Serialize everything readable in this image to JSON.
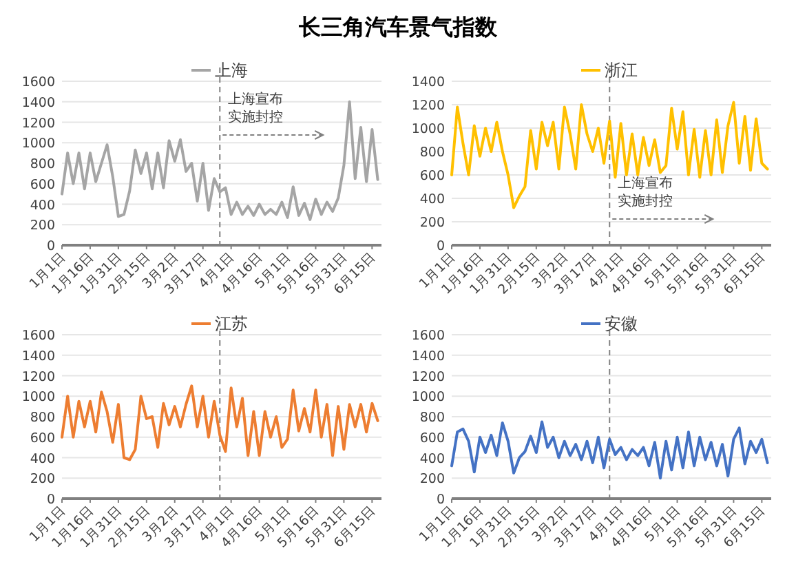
{
  "chart_data": [
    {
      "type": "line",
      "title": "长三角汽车景气指数",
      "legend": "top",
      "grid": "y",
      "xlim": [
        "--01-01",
        "--06-20"
      ],
      "ylim": [
        0,
        1600
      ],
      "yticks": [
        0,
        200,
        400,
        600,
        800,
        1000,
        1200,
        1400,
        1600
      ],
      "xticks": [
        {
          "value": "--01-01",
          "label": "1月1日"
        },
        {
          "value": "--01-16",
          "label": "1月16日"
        },
        {
          "value": "--01-31",
          "label": "1月31日"
        },
        {
          "value": "--02-15",
          "label": "2月15日"
        },
        {
          "value": "--03-02",
          "label": "3月2日"
        },
        {
          "value": "--03-17",
          "label": "3月17日"
        },
        {
          "value": "--04-01",
          "label": "4月1日"
        },
        {
          "value": "--04-16",
          "label": "4月16日"
        },
        {
          "value": "--05-01",
          "label": "5月1日"
        },
        {
          "value": "--05-16",
          "label": "5月16日"
        },
        {
          "value": "--05-31",
          "label": "5月31日"
        },
        {
          "value": "--06-15",
          "label": "6月15日"
        }
      ],
      "ref_lines": [
        {
          "axis": "x",
          "value": "--03-26",
          "label": "上海宣布实施封控",
          "color": "#808080",
          "line_style": "dashed"
        }
      ],
      "x": [
        "--01-01",
        "--01-04",
        "--01-07",
        "--01-10",
        "--01-13",
        "--01-16",
        "--01-19",
        "--01-22",
        "--01-25",
        "--01-28",
        "--01-31",
        "--02-03",
        "--02-06",
        "--02-09",
        "--02-12",
        "--02-15",
        "--02-18",
        "--02-21",
        "--02-24",
        "--02-27",
        "--03-02",
        "--03-05",
        "--03-08",
        "--03-11",
        "--03-14",
        "--03-17",
        "--03-20",
        "--03-23",
        "--03-26",
        "--03-29",
        "--04-01",
        "--04-04",
        "--04-07",
        "--04-10",
        "--04-13",
        "--04-16",
        "--04-19",
        "--04-22",
        "--04-25",
        "--04-28",
        "--05-01",
        "--05-04",
        "--05-07",
        "--05-10",
        "--05-13",
        "--05-16",
        "--05-19",
        "--05-22",
        "--05-25",
        "--05-28",
        "--05-31",
        "--06-03",
        "--06-06",
        "--06-09",
        "--06-12",
        "--06-15",
        "--06-18"
      ],
      "series": [
        {
          "name": "上海",
          "color": "#a5a5a5",
          "values": [
            500,
            900,
            600,
            900,
            550,
            900,
            620,
            800,
            980,
            670,
            280,
            300,
            530,
            930,
            700,
            900,
            550,
            900,
            560,
            1020,
            820,
            1030,
            720,
            800,
            430,
            800,
            340,
            650,
            520,
            560,
            300,
            420,
            300,
            380,
            290,
            400,
            300,
            350,
            300,
            420,
            270,
            570,
            290,
            410,
            250,
            450,
            300,
            420,
            330,
            460,
            780,
            1400,
            650,
            1150,
            620,
            1130,
            640
          ]
        }
      ]
    },
    {
      "type": "line",
      "legend": "top",
      "grid": "y",
      "xlim": [
        "--01-01",
        "--06-20"
      ],
      "ylim": [
        0,
        1400
      ],
      "yticks": [
        0,
        200,
        400,
        600,
        800,
        1000,
        1200,
        1400
      ],
      "xticks": [
        {
          "value": "--01-01",
          "label": "1月1日"
        },
        {
          "value": "--01-16",
          "label": "1月16日"
        },
        {
          "value": "--01-31",
          "label": "1月31日"
        },
        {
          "value": "--02-15",
          "label": "2月15日"
        },
        {
          "value": "--03-02",
          "label": "3月2日"
        },
        {
          "value": "--03-17",
          "label": "3月17日"
        },
        {
          "value": "--04-01",
          "label": "4月1日"
        },
        {
          "value": "--04-16",
          "label": "4月16日"
        },
        {
          "value": "--05-01",
          "label": "5月1日"
        },
        {
          "value": "--05-16",
          "label": "5月16日"
        },
        {
          "value": "--05-31",
          "label": "5月31日"
        },
        {
          "value": "--06-15",
          "label": "6月15日"
        }
      ],
      "ref_lines": [
        {
          "axis": "x",
          "value": "--03-26",
          "label": "上海宣布实施封控",
          "color": "#808080",
          "line_style": "dashed"
        }
      ],
      "x": [
        "--01-01",
        "--01-04",
        "--01-07",
        "--01-10",
        "--01-13",
        "--01-16",
        "--01-19",
        "--01-22",
        "--01-25",
        "--01-28",
        "--01-31",
        "--02-03",
        "--02-06",
        "--02-09",
        "--02-12",
        "--02-15",
        "--02-18",
        "--02-21",
        "--02-24",
        "--02-27",
        "--03-02",
        "--03-05",
        "--03-08",
        "--03-11",
        "--03-14",
        "--03-17",
        "--03-20",
        "--03-23",
        "--03-26",
        "--03-29",
        "--04-01",
        "--04-04",
        "--04-07",
        "--04-10",
        "--04-13",
        "--04-16",
        "--04-19",
        "--04-22",
        "--04-25",
        "--04-28",
        "--05-01",
        "--05-04",
        "--05-07",
        "--05-10",
        "--05-13",
        "--05-16",
        "--05-19",
        "--05-22",
        "--05-25",
        "--05-28",
        "--05-31",
        "--06-03",
        "--06-06",
        "--06-09",
        "--06-12",
        "--06-15",
        "--06-18"
      ],
      "series": [
        {
          "name": "浙江",
          "color": "#ffc000",
          "values": [
            600,
            1180,
            870,
            600,
            1020,
            760,
            1000,
            800,
            1050,
            800,
            600,
            320,
            420,
            500,
            980,
            650,
            1050,
            850,
            1050,
            650,
            1180,
            950,
            650,
            1200,
            950,
            800,
            1000,
            700,
            1060,
            580,
            1040,
            600,
            950,
            600,
            920,
            680,
            900,
            620,
            680,
            1170,
            820,
            1140,
            600,
            990,
            580,
            980,
            600,
            1070,
            620,
            1020,
            1220,
            700,
            1100,
            640,
            1080,
            700,
            650
          ]
        }
      ]
    },
    {
      "type": "line",
      "legend": "top",
      "grid": "y",
      "xlim": [
        "--01-01",
        "--06-20"
      ],
      "ylim": [
        0,
        1600
      ],
      "yticks": [
        0,
        200,
        400,
        600,
        800,
        1000,
        1200,
        1400,
        1600
      ],
      "xticks": [
        {
          "value": "--01-01",
          "label": "1月1日"
        },
        {
          "value": "--01-16",
          "label": "1月16日"
        },
        {
          "value": "--01-31",
          "label": "1月31日"
        },
        {
          "value": "--02-15",
          "label": "2月15日"
        },
        {
          "value": "--03-02",
          "label": "3月2日"
        },
        {
          "value": "--03-17",
          "label": "3月17日"
        },
        {
          "value": "--04-01",
          "label": "4月1日"
        },
        {
          "value": "--04-16",
          "label": "4月16日"
        },
        {
          "value": "--05-01",
          "label": "5月1日"
        },
        {
          "value": "--05-16",
          "label": "5月16日"
        },
        {
          "value": "--05-31",
          "label": "5月31日"
        },
        {
          "value": "--06-15",
          "label": "6月15日"
        }
      ],
      "ref_lines": [
        {
          "axis": "x",
          "value": "--03-26",
          "color": "#808080",
          "line_style": "dashed"
        }
      ],
      "x": [
        "--01-01",
        "--01-04",
        "--01-07",
        "--01-10",
        "--01-13",
        "--01-16",
        "--01-19",
        "--01-22",
        "--01-25",
        "--01-28",
        "--01-31",
        "--02-03",
        "--02-06",
        "--02-09",
        "--02-12",
        "--02-15",
        "--02-18",
        "--02-21",
        "--02-24",
        "--02-27",
        "--03-02",
        "--03-05",
        "--03-08",
        "--03-11",
        "--03-14",
        "--03-17",
        "--03-20",
        "--03-23",
        "--03-26",
        "--03-29",
        "--04-01",
        "--04-04",
        "--04-07",
        "--04-10",
        "--04-13",
        "--04-16",
        "--04-19",
        "--04-22",
        "--04-25",
        "--04-28",
        "--05-01",
        "--05-04",
        "--05-07",
        "--05-10",
        "--05-13",
        "--05-16",
        "--05-19",
        "--05-22",
        "--05-25",
        "--05-28",
        "--05-31",
        "--06-03",
        "--06-06",
        "--06-09",
        "--06-12",
        "--06-15",
        "--06-18"
      ],
      "series": [
        {
          "name": "江苏",
          "color": "#ed7d31",
          "values": [
            600,
            1000,
            600,
            950,
            700,
            950,
            650,
            1040,
            850,
            550,
            920,
            400,
            380,
            480,
            1000,
            780,
            800,
            500,
            930,
            720,
            900,
            700,
            920,
            1100,
            700,
            1000,
            600,
            950,
            620,
            460,
            1080,
            700,
            980,
            420,
            850,
            420,
            850,
            600,
            800,
            500,
            580,
            1060,
            660,
            880,
            650,
            1060,
            600,
            920,
            420,
            900,
            480,
            920,
            700,
            920,
            650,
            930,
            760
          ]
        }
      ]
    },
    {
      "type": "line",
      "legend": "top",
      "grid": "y",
      "xlim": [
        "--01-01",
        "--06-20"
      ],
      "ylim": [
        0,
        1600
      ],
      "yticks": [
        0,
        200,
        400,
        600,
        800,
        1000,
        1200,
        1400,
        1600
      ],
      "xticks": [
        {
          "value": "--01-01",
          "label": "1月1日"
        },
        {
          "value": "--01-16",
          "label": "1月16日"
        },
        {
          "value": "--01-31",
          "label": "1月31日"
        },
        {
          "value": "--02-15",
          "label": "2月15日"
        },
        {
          "value": "--03-02",
          "label": "3月2日"
        },
        {
          "value": "--03-17",
          "label": "3月17日"
        },
        {
          "value": "--04-01",
          "label": "4月1日"
        },
        {
          "value": "--04-16",
          "label": "4月16日"
        },
        {
          "value": "--05-01",
          "label": "5月1日"
        },
        {
          "value": "--05-16",
          "label": "5月16日"
        },
        {
          "value": "--05-31",
          "label": "5月31日"
        },
        {
          "value": "--06-15",
          "label": "6月15日"
        }
      ],
      "ref_lines": [
        {
          "axis": "x",
          "value": "--03-26",
          "color": "#808080",
          "line_style": "dashed"
        }
      ],
      "x": [
        "--01-01",
        "--01-04",
        "--01-07",
        "--01-10",
        "--01-13",
        "--01-16",
        "--01-19",
        "--01-22",
        "--01-25",
        "--01-28",
        "--01-31",
        "--02-03",
        "--02-06",
        "--02-09",
        "--02-12",
        "--02-15",
        "--02-18",
        "--02-21",
        "--02-24",
        "--02-27",
        "--03-02",
        "--03-05",
        "--03-08",
        "--03-11",
        "--03-14",
        "--03-17",
        "--03-20",
        "--03-23",
        "--03-26",
        "--03-29",
        "--04-01",
        "--04-04",
        "--04-07",
        "--04-10",
        "--04-13",
        "--04-16",
        "--04-19",
        "--04-22",
        "--04-25",
        "--04-28",
        "--05-01",
        "--05-04",
        "--05-07",
        "--05-10",
        "--05-13",
        "--05-16",
        "--05-19",
        "--05-22",
        "--05-25",
        "--05-28",
        "--05-31",
        "--06-03",
        "--06-06",
        "--06-09",
        "--06-12",
        "--06-15",
        "--06-18"
      ],
      "series": [
        {
          "name": "安徽",
          "color": "#4472c4",
          "values": [
            320,
            650,
            680,
            560,
            260,
            600,
            450,
            620,
            420,
            740,
            560,
            250,
            400,
            460,
            610,
            450,
            750,
            500,
            600,
            400,
            560,
            420,
            530,
            380,
            560,
            350,
            600,
            300,
            580,
            430,
            500,
            380,
            480,
            420,
            500,
            320,
            550,
            200,
            560,
            280,
            600,
            300,
            650,
            320,
            600,
            380,
            550,
            320,
            530,
            220,
            580,
            690,
            340,
            560,
            450,
            580,
            350
          ]
        }
      ]
    }
  ]
}
